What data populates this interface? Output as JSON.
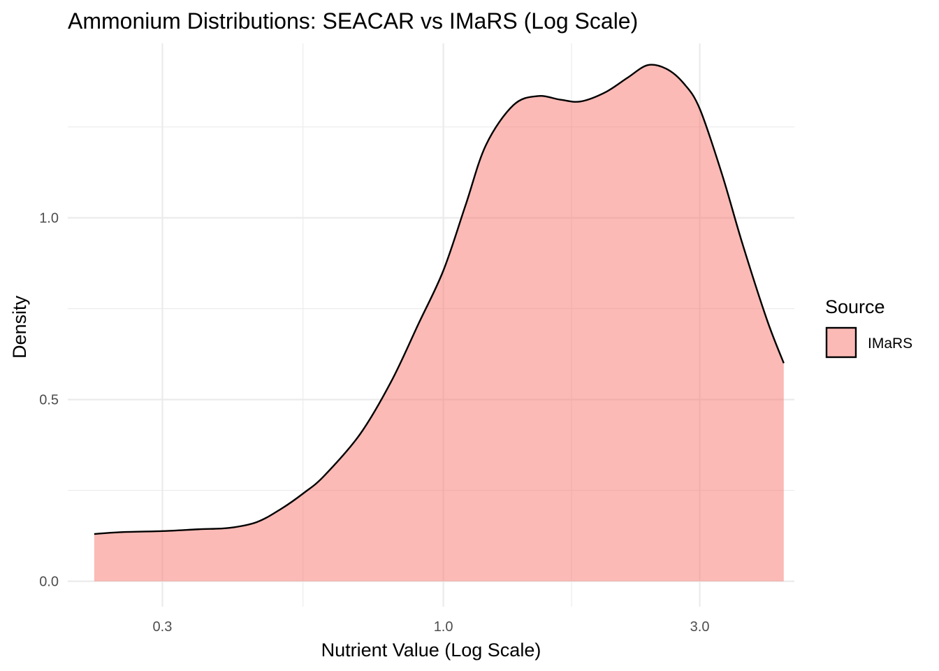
{
  "chart_data": {
    "type": "area",
    "title": "Ammonium Distributions: SEACAR vs IMaRS (Log Scale)",
    "xlabel": "Nutrient Value (Log Scale)",
    "ylabel": "Density",
    "x_scale": "log10",
    "xlim": [
      0.2,
      4.5
    ],
    "ylim": [
      -0.07,
      1.48
    ],
    "x_ticks": [
      {
        "value": 0.3,
        "label": "0.3"
      },
      {
        "value": 1.0,
        "label": "1.0"
      },
      {
        "value": 3.0,
        "label": "3.0"
      }
    ],
    "x_minor_ticks": [
      0.548,
      1.732
    ],
    "y_ticks": [
      {
        "value": 0.0,
        "label": "0.0"
      },
      {
        "value": 0.5,
        "label": "0.5"
      },
      {
        "value": 1.0,
        "label": "1.0"
      }
    ],
    "y_minor_ticks": [
      0.25,
      0.75,
      1.25
    ],
    "grid": true,
    "legend": {
      "title": "Source",
      "position": "right",
      "entries": [
        {
          "label": "IMaRS",
          "color": "#F8766D"
        }
      ]
    },
    "series": [
      {
        "name": "IMaRS",
        "color": "#F8766D",
        "fill_opacity": 0.5,
        "x": [
          0.224,
          0.25,
          0.3,
          0.35,
          0.4,
          0.45,
          0.5,
          0.55,
          0.6,
          0.7,
          0.8,
          0.9,
          1.0,
          1.1,
          1.2,
          1.35,
          1.5,
          1.65,
          1.8,
          2.0,
          2.2,
          2.4,
          2.6,
          2.8,
          3.0,
          3.3,
          3.6,
          4.0,
          4.3
        ],
        "y": [
          0.13,
          0.135,
          0.138,
          0.143,
          0.147,
          0.163,
          0.2,
          0.243,
          0.29,
          0.405,
          0.55,
          0.71,
          0.855,
          1.035,
          1.2,
          1.31,
          1.335,
          1.325,
          1.32,
          1.345,
          1.385,
          1.42,
          1.41,
          1.37,
          1.3,
          1.12,
          0.93,
          0.72,
          0.6
        ]
      }
    ]
  }
}
